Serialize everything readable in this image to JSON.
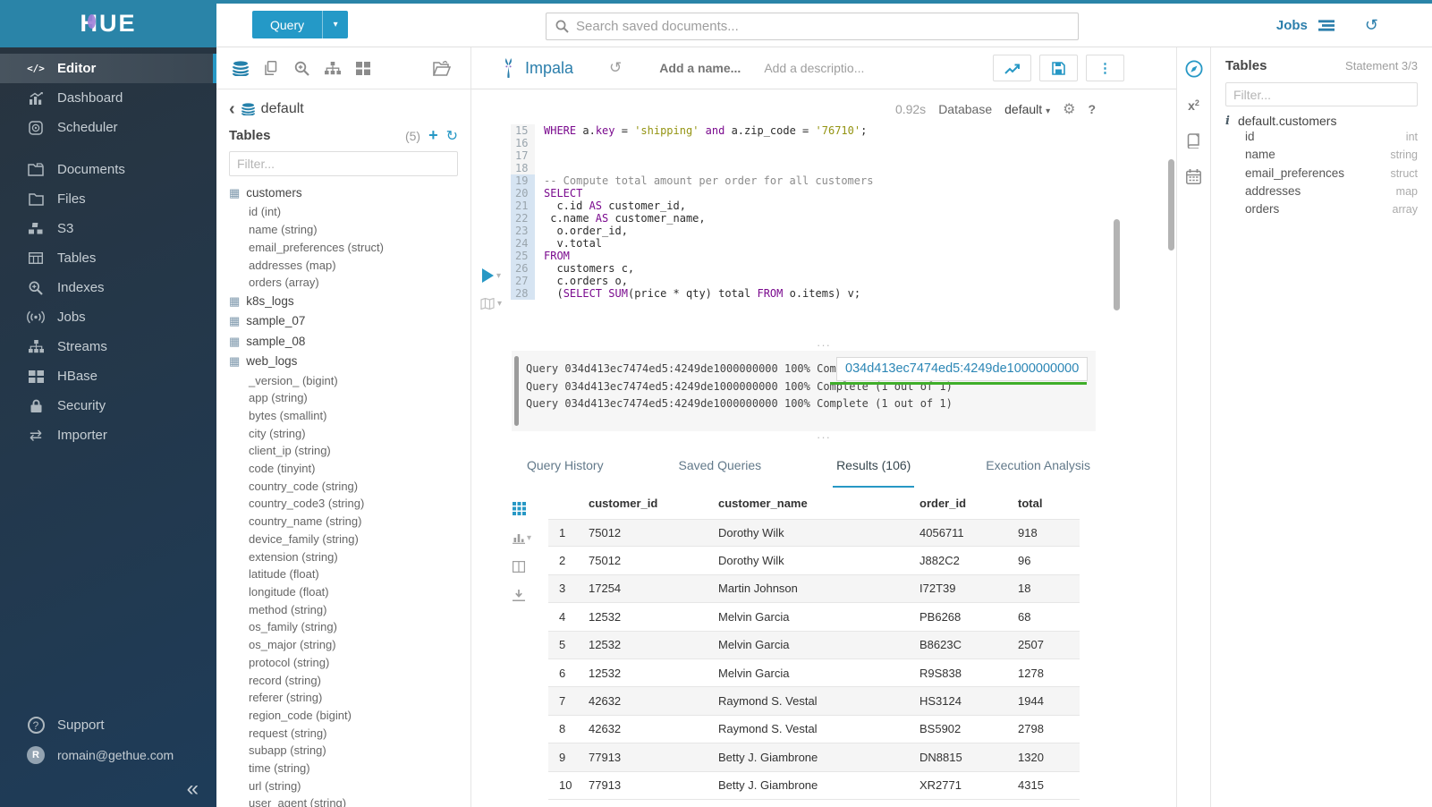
{
  "ui": {
    "resize_dots": "···",
    "collapse_glyph": "«",
    "back_glyph": "‹",
    "caret_down": "▾",
    "refresh_glyph": "↻",
    "history_glyph": "↺",
    "gear_glyph": "⚙",
    "help_glyph": "?",
    "plus_glyph": "+"
  },
  "topbar": {
    "query_label": "Query",
    "search_placeholder": "Search saved documents...",
    "jobs_label": "Jobs"
  },
  "sidebar": {
    "logo": "HUE",
    "items": [
      {
        "id": "editor",
        "label": "Editor",
        "icon": "code-icon",
        "active": true
      },
      {
        "id": "dashboard",
        "label": "Dashboard",
        "icon": "dashboard-icon"
      },
      {
        "id": "scheduler",
        "label": "Scheduler",
        "icon": "scheduler-icon"
      },
      {
        "id": "documents",
        "label": "Documents",
        "icon": "documents-icon",
        "gap": true
      },
      {
        "id": "files",
        "label": "Files",
        "icon": "files-icon"
      },
      {
        "id": "s3",
        "label": "S3",
        "icon": "s3-icon"
      },
      {
        "id": "tables",
        "label": "Tables",
        "icon": "tables-icon"
      },
      {
        "id": "indexes",
        "label": "Indexes",
        "icon": "indexes-icon"
      },
      {
        "id": "jobs",
        "label": "Jobs",
        "icon": "jobs-icon"
      },
      {
        "id": "streams",
        "label": "Streams",
        "icon": "streams-icon"
      },
      {
        "id": "hbase",
        "label": "HBase",
        "icon": "hbase-icon"
      },
      {
        "id": "security",
        "label": "Security",
        "icon": "security-icon"
      },
      {
        "id": "importer",
        "label": "Importer",
        "icon": "importer-icon"
      }
    ],
    "footer": {
      "support_label": "Support",
      "user_email": "romain@gethue.com",
      "avatar_letter": "R"
    }
  },
  "assist_left": {
    "breadcrumb": "default",
    "tables_label": "Tables",
    "count": "(5)",
    "filter_placeholder": "Filter...",
    "tables": [
      {
        "name": "customers",
        "columns": [
          "id (int)",
          "name (string)",
          "email_preferences (struct)",
          "addresses (map)",
          "orders (array)"
        ]
      },
      {
        "name": "k8s_logs",
        "columns": []
      },
      {
        "name": "sample_07",
        "columns": []
      },
      {
        "name": "sample_08",
        "columns": []
      },
      {
        "name": "web_logs",
        "columns": [
          "_version_ (bigint)",
          "app (string)",
          "bytes (smallint)",
          "city (string)",
          "client_ip (string)",
          "code (tinyint)",
          "country_code (string)",
          "country_code3 (string)",
          "country_name (string)",
          "device_family (string)",
          "extension (string)",
          "latitude (float)",
          "longitude (float)",
          "method (string)",
          "os_family (string)",
          "os_major (string)",
          "protocol (string)",
          "record (string)",
          "referer (string)",
          "region_code (bigint)",
          "request (string)",
          "subapp (string)",
          "time (string)",
          "url (string)",
          "user_agent (string)"
        ]
      }
    ]
  },
  "editor": {
    "engine": "Impala",
    "name_placeholder": "Add a name...",
    "description_placeholder": "Add a descriptio...",
    "exec_time": "0.92s",
    "database_label": "Database",
    "database_value": "default",
    "lines": [
      {
        "n": "15",
        "hl": false,
        "tokens": [
          {
            "c": "k",
            "t": "WHERE"
          },
          {
            "c": "d",
            "t": " a."
          },
          {
            "c": "k",
            "t": "key"
          },
          {
            "c": "d",
            "t": " = "
          },
          {
            "c": "s",
            "t": "'shipping'"
          },
          {
            "c": "d",
            "t": " "
          },
          {
            "c": "k",
            "t": "and"
          },
          {
            "c": "d",
            "t": " a.zip_code = "
          },
          {
            "c": "s",
            "t": "'76710'"
          },
          {
            "c": "d",
            "t": ";"
          }
        ]
      },
      {
        "n": "16",
        "hl": false,
        "tokens": []
      },
      {
        "n": "17",
        "hl": false,
        "tokens": []
      },
      {
        "n": "18",
        "hl": false,
        "tokens": []
      },
      {
        "n": "19",
        "hl": true,
        "tokens": [
          {
            "c": "c",
            "t": "-- Compute total amount per order for all customers"
          }
        ]
      },
      {
        "n": "20",
        "hl": true,
        "tokens": [
          {
            "c": "k",
            "t": "SELECT"
          }
        ]
      },
      {
        "n": "21",
        "hl": true,
        "tokens": [
          {
            "c": "d",
            "t": "  c.id "
          },
          {
            "c": "k",
            "t": "AS"
          },
          {
            "c": "d",
            "t": " customer_id,"
          }
        ]
      },
      {
        "n": "22",
        "hl": true,
        "tokens": [
          {
            "c": "d",
            "t": " c.name "
          },
          {
            "c": "k",
            "t": "AS"
          },
          {
            "c": "d",
            "t": " customer_name,"
          }
        ]
      },
      {
        "n": "23",
        "hl": true,
        "tokens": [
          {
            "c": "d",
            "t": "  o.order_id,"
          }
        ]
      },
      {
        "n": "24",
        "hl": true,
        "tokens": [
          {
            "c": "d",
            "t": "  v.total"
          }
        ]
      },
      {
        "n": "25",
        "hl": true,
        "tokens": [
          {
            "c": "k",
            "t": "FROM"
          }
        ]
      },
      {
        "n": "26",
        "hl": true,
        "tokens": [
          {
            "c": "d",
            "t": "  customers c,"
          }
        ]
      },
      {
        "n": "27",
        "hl": true,
        "tokens": [
          {
            "c": "d",
            "t": "  c.orders o,"
          }
        ]
      },
      {
        "n": "28",
        "hl": true,
        "tokens": [
          {
            "c": "d",
            "t": "  ("
          },
          {
            "c": "k",
            "t": "SELECT"
          },
          {
            "c": "d",
            "t": " "
          },
          {
            "c": "k",
            "t": "SUM"
          },
          {
            "c": "d",
            "t": "(price * qty) total "
          },
          {
            "c": "k",
            "t": "FROM"
          },
          {
            "c": "d",
            "t": " o.items) v;"
          }
        ]
      }
    ]
  },
  "log": {
    "lines": [
      "Query 034d413ec7474ed5:4249de1000000000 100% Complete (1 out of 1)",
      "Query 034d413ec7474ed5:4249de1000000000 100% Complete (1 out of 1)",
      "Query 034d413ec7474ed5:4249de1000000000 100% Complete (1 out of 1)"
    ],
    "tooltip": "034d413ec7474ed5:4249de1000000000"
  },
  "tabs": {
    "items": [
      {
        "label": "Query History",
        "active": false
      },
      {
        "label": "Saved Queries",
        "active": false
      },
      {
        "label": "Results (106)",
        "active": true
      },
      {
        "label": "Execution Analysis",
        "active": false
      }
    ]
  },
  "results": {
    "columns": [
      "customer_id",
      "customer_name",
      "order_id",
      "total"
    ],
    "rows": [
      [
        "75012",
        "Dorothy Wilk",
        "4056711",
        "918"
      ],
      [
        "75012",
        "Dorothy Wilk",
        "J882C2",
        "96"
      ],
      [
        "17254",
        "Martin Johnson",
        "I72T39",
        "18"
      ],
      [
        "12532",
        "Melvin Garcia",
        "PB6268",
        "68"
      ],
      [
        "12532",
        "Melvin Garcia",
        "B8623C",
        "2507"
      ],
      [
        "12532",
        "Melvin Garcia",
        "R9S838",
        "1278"
      ],
      [
        "42632",
        "Raymond S. Vestal",
        "HS3124",
        "1944"
      ],
      [
        "42632",
        "Raymond S. Vestal",
        "BS5902",
        "2798"
      ],
      [
        "77913",
        "Betty J. Giambrone",
        "DN8815",
        "1320"
      ],
      [
        "77913",
        "Betty J. Giambrone",
        "XR2771",
        "4315"
      ]
    ]
  },
  "right_panel": {
    "title": "Tables",
    "statement": "Statement 3/3",
    "filter_placeholder": "Filter...",
    "table_name": "default.customers",
    "columns": [
      {
        "name": "id",
        "type": "int"
      },
      {
        "name": "name",
        "type": "string"
      },
      {
        "name": "email_preferences",
        "type": "struct"
      },
      {
        "name": "addresses",
        "type": "map"
      },
      {
        "name": "orders",
        "type": "array"
      }
    ]
  },
  "colors": {
    "brand": "#2a84a8",
    "accent": "#2798c5",
    "button": "#2499c7",
    "progress_green": "#3fae2a"
  }
}
